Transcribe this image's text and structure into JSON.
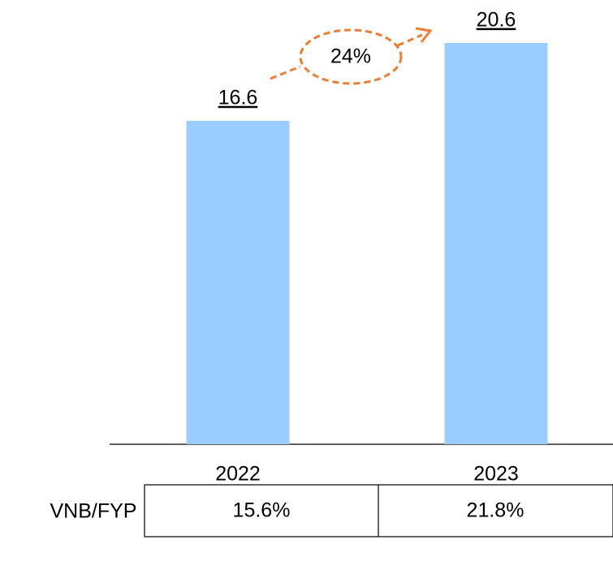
{
  "chart_data": {
    "type": "bar",
    "categories": [
      "2022",
      "2023"
    ],
    "values": [
      16.6,
      20.6
    ],
    "color": "#99ccff",
    "annotation": "24%",
    "annotation_color": "#ed7d31"
  },
  "table": {
    "rows": [
      [
        "VNB/FYP",
        "15.6%",
        "21.8%"
      ]
    ]
  }
}
